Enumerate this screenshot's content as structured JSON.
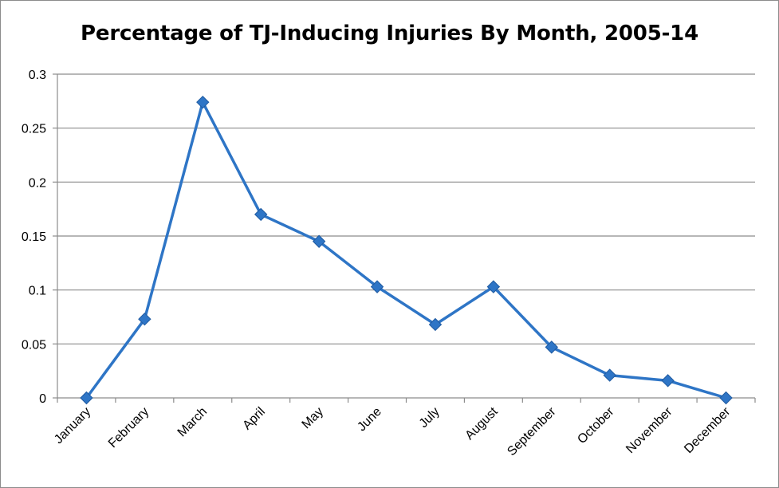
{
  "chart_data": {
    "type": "line",
    "title": "Percentage of TJ-Inducing Injuries By Month, 2005-14",
    "xlabel": "",
    "ylabel": "",
    "categories": [
      "January",
      "February",
      "March",
      "April",
      "May",
      "June",
      "July",
      "August",
      "September",
      "October",
      "November",
      "December"
    ],
    "series": [
      {
        "values": [
          0,
          0.073,
          0.274,
          0.17,
          0.145,
          0.103,
          0.068,
          0.103,
          0.047,
          0.021,
          0.016,
          0
        ]
      }
    ],
    "ylim": [
      0,
      0.3
    ],
    "yticks": [
      0,
      0.05,
      0.1,
      0.15,
      0.2,
      0.25,
      0.3
    ],
    "ytick_labels": [
      "0",
      "0.05",
      "0.1",
      "0.15",
      "0.2",
      "0.25",
      "0.3"
    ],
    "grid": true,
    "legend": "none",
    "colors": {
      "line": "#2e75c6",
      "marker": "#2e75c6",
      "marker_stroke": "#1f5aa0",
      "grid": "#8c8c8c",
      "axis": "#8c8c8c"
    }
  }
}
